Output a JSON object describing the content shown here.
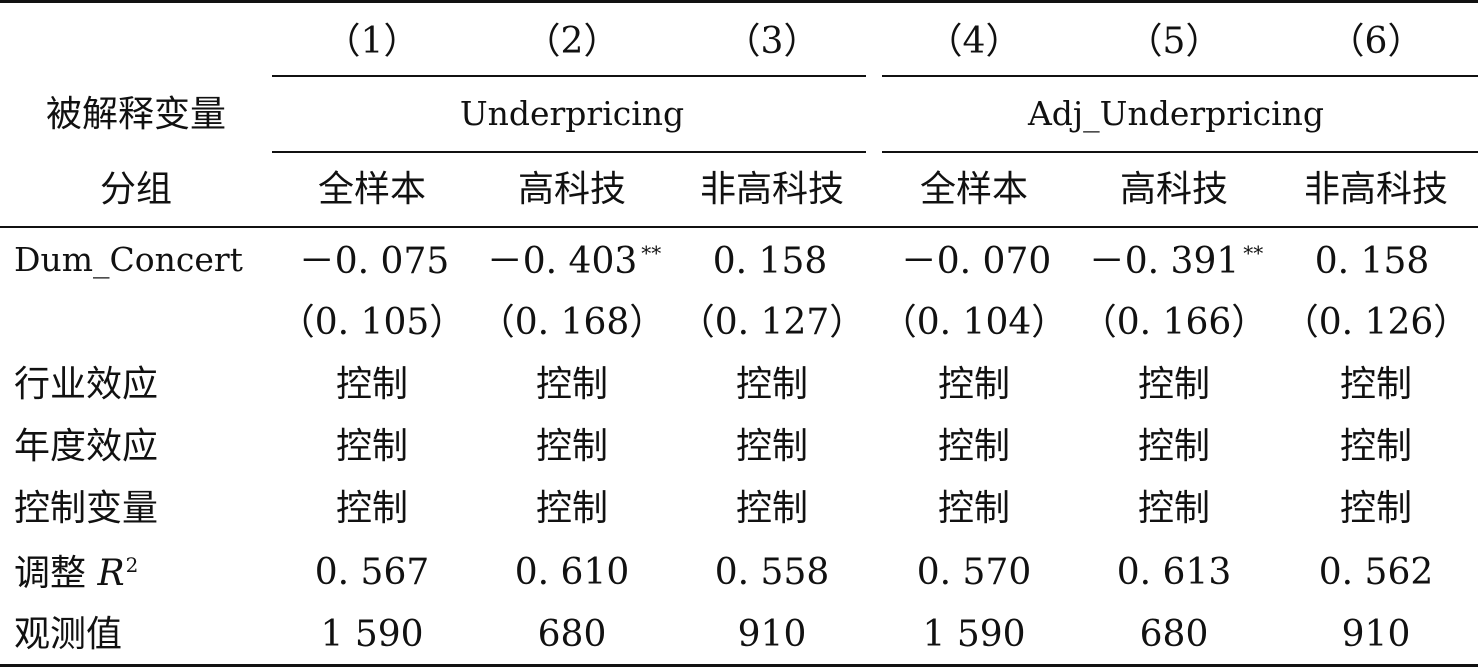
{
  "table": {
    "header": {
      "col_numbers": [
        "（1）",
        "（2）",
        "（3）",
        "（4）",
        "（5）",
        "（6）"
      ],
      "dep_var_label": "被解释变量",
      "dep_var_left": "Underpricing",
      "dep_var_right": "Adj_Underpricing",
      "group_label": "分组",
      "groups": [
        "全样本",
        "高科技",
        "非高科技",
        "全样本",
        "高科技",
        "非高科技"
      ]
    },
    "rows": {
      "dum_concert": {
        "label": "Dum_Concert",
        "coef": [
          "－0. 075",
          "－0. 403",
          "0. 158",
          "－0. 070",
          "－0. 391",
          "0. 158"
        ],
        "stars": [
          "",
          "**",
          "",
          "",
          "**",
          ""
        ],
        "se": [
          "（0. 105）",
          "（0. 168）",
          "（0. 127）",
          "（0. 104）",
          "（0. 166）",
          "（0. 126）"
        ]
      },
      "industry": {
        "label": "行业效应",
        "values": [
          "控制",
          "控制",
          "控制",
          "控制",
          "控制",
          "控制"
        ]
      },
      "year": {
        "label": "年度效应",
        "values": [
          "控制",
          "控制",
          "控制",
          "控制",
          "控制",
          "控制"
        ]
      },
      "controls": {
        "label": "控制变量",
        "values": [
          "控制",
          "控制",
          "控制",
          "控制",
          "控制",
          "控制"
        ]
      },
      "adj_r2": {
        "label_prefix": "调整 ",
        "label_var": "R",
        "label_sup": "2",
        "values": [
          "0. 567",
          "0. 610",
          "0. 558",
          "0. 570",
          "0. 613",
          "0. 562"
        ]
      },
      "obs": {
        "label": "观测值",
        "values": [
          "1 590",
          "680",
          "910",
          "1 590",
          "680",
          "910"
        ]
      }
    }
  }
}
